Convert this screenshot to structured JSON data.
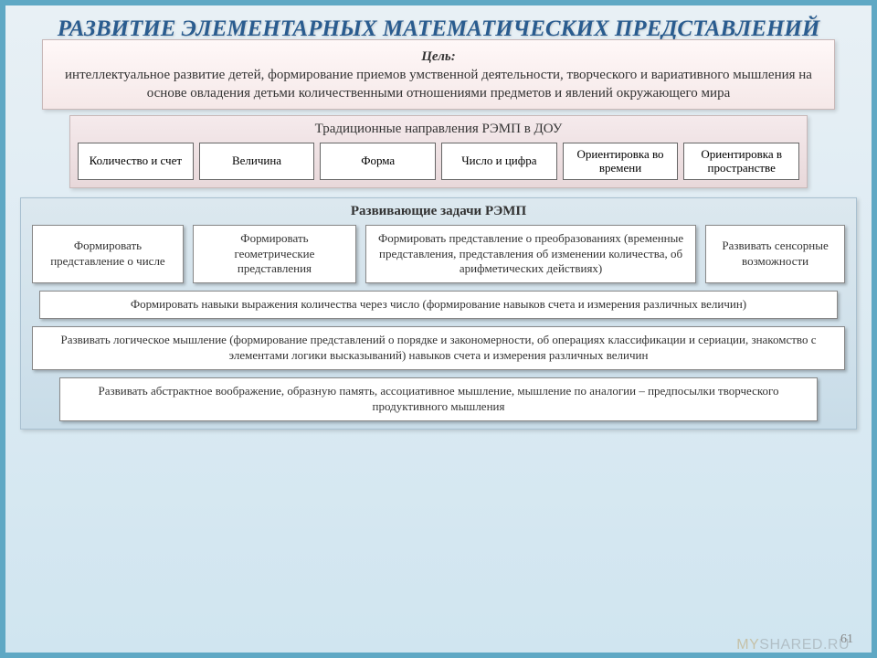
{
  "title": "РАЗВИТИЕ ЭЛЕМЕНТАРНЫХ МАТЕМАТИЧЕСКИХ ПРЕДСТАВЛЕНИЙ",
  "goal": {
    "label": "Цель:",
    "text": "интеллектуальное развитие детей, формирование приемов умственной деятельности, творческого и вариативного мышления на основе овладения детьми количественными отношениями предметов и явлений окружающего мира"
  },
  "directions": {
    "title": "Традиционные направления РЭМП в ДОУ",
    "items": [
      "Количество и счет",
      "Величина",
      "Форма",
      "Число и цифра",
      "Ориентировка во времени",
      "Ориентировка в пространстве"
    ]
  },
  "tasks": {
    "title": "Развивающие задачи РЭМП",
    "row1": [
      "Формировать представление о числе",
      "Формировать геометрические представления",
      "Формировать представление о преобразованиях (временные представления, представления об изменении количества, об арифметических действиях)",
      "Развивать сенсорные возможности"
    ],
    "full": [
      "Формировать навыки выражения количества через число (формирование навыков счета и измерения различных величин)",
      "Развивать логическое мышление (формирование представлений о порядке и закономерности, об операциях классификации и сериации, знакомство с элементами логики высказываний) навыков счета и измерения различных величин",
      "Развивать абстрактное воображение, образную память, ассоциативное мышление, мышление по аналогии – предпосылки творческого продуктивного мышления"
    ]
  },
  "page_number": "61",
  "watermark": {
    "my": "MY",
    "rest": "SHARED.RU"
  },
  "colors": {
    "border": "#5fa8c4",
    "title": "#2a5c8f",
    "goal_bg_top": "#fff8f8",
    "goal_bg_bottom": "#f5e8e8",
    "dir_bg_top": "#f5eaec",
    "dir_bg_bottom": "#e8d8da",
    "tasks_bg_top": "#dce8ef",
    "tasks_bg_bottom": "#c8dce8"
  }
}
